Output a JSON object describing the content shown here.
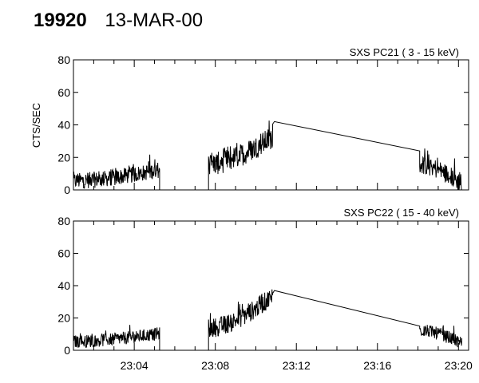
{
  "header": {
    "event_id": "19920",
    "date": "13-MAR-00"
  },
  "colors": {
    "line": "#000000",
    "background": "#ffffff"
  },
  "chart_data": [
    {
      "type": "line",
      "title": "SXS PC21  (  3 - 15 keV)",
      "ylabel": "CTS/SEC",
      "ylim": [
        0,
        80
      ],
      "yticks": [
        "0",
        "20",
        "40",
        "60",
        "80"
      ],
      "xlim": [
        "23:01",
        "23:20:30"
      ],
      "xticks": [],
      "segments": [
        {
          "x": [
            "23:01:00",
            "23:05:15"
          ],
          "y": [
            5,
            12
          ],
          "noise": 5
        },
        {
          "x": [
            "23:05:15",
            "23:07:40"
          ],
          "y": [
            0,
            0
          ],
          "noise": 0
        },
        {
          "x": [
            "23:07:40",
            "23:10:50"
          ],
          "y": [
            15,
            32
          ],
          "noise": 7
        },
        {
          "x": [
            "23:10:55",
            "23:18:05"
          ],
          "y": [
            42,
            24
          ],
          "noise": 0
        },
        {
          "x": [
            "23:18:05",
            "23:20:10"
          ],
          "y": [
            15,
            3
          ],
          "noise": 6
        }
      ]
    },
    {
      "type": "line",
      "title": "SXS PC22  ( 15 - 40 keV)",
      "ylabel": "",
      "ylim": [
        0,
        80
      ],
      "yticks": [
        "0",
        "20",
        "40",
        "60",
        "80"
      ],
      "xlim": [
        "23:01",
        "23:20:30"
      ],
      "xticks": [
        "23:04",
        "23:08",
        "23:12",
        "23:16",
        "23:20"
      ],
      "segments": [
        {
          "x": [
            "23:01:00",
            "23:05:15"
          ],
          "y": [
            5,
            10
          ],
          "noise": 4
        },
        {
          "x": [
            "23:05:15",
            "23:07:40"
          ],
          "y": [
            0,
            0
          ],
          "noise": 0
        },
        {
          "x": [
            "23:07:40",
            "23:10:50"
          ],
          "y": [
            13,
            33
          ],
          "noise": 6
        },
        {
          "x": [
            "23:10:55",
            "23:18:05"
          ],
          "y": [
            37,
            15
          ],
          "noise": 0
        },
        {
          "x": [
            "23:18:05",
            "23:20:10"
          ],
          "y": [
            12,
            4
          ],
          "noise": 4
        }
      ]
    }
  ]
}
